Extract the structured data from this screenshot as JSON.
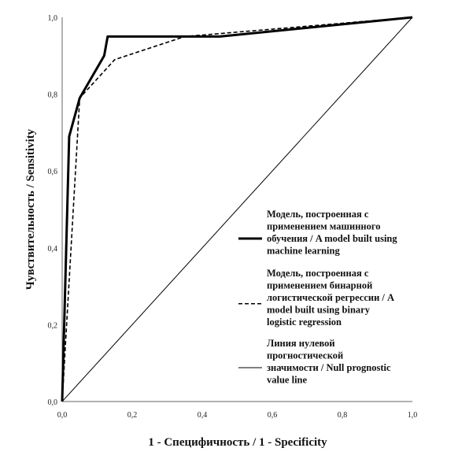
{
  "chart_data": {
    "type": "line",
    "xlabel": "1 - Специфичность / 1 - Specificity",
    "ylabel": "Чувствительность / Sensitivity",
    "xlim": [
      0,
      1
    ],
    "ylim": [
      0,
      1
    ],
    "x_ticks": [
      "0,0",
      "0,2",
      "0,4",
      "0,6",
      "0,8",
      "1,0"
    ],
    "y_ticks": [
      "0,0",
      "0,2",
      "0,4",
      "0,6",
      "0,8",
      "1,0"
    ],
    "grid": false,
    "legend_position": "right",
    "series": [
      {
        "name": "Модель, построенная с применением машинного обучения / A model built using machine learning",
        "style": "solid-thick",
        "color": "#000000",
        "x": [
          0.0,
          0.02,
          0.05,
          0.12,
          0.13,
          0.45,
          1.0
        ],
        "y": [
          0.0,
          0.69,
          0.79,
          0.9,
          0.95,
          0.95,
          1.0
        ]
      },
      {
        "name": "Модель, построенная с применением бинарной логистической регрессии / A model built using binary logistic regression",
        "style": "dashed",
        "color": "#000000",
        "x": [
          0.0,
          0.05,
          0.15,
          0.35,
          1.0
        ],
        "y": [
          0.0,
          0.79,
          0.89,
          0.95,
          1.0
        ]
      },
      {
        "name": "Линия нулевой прогностической значимости / Null prognostic value line",
        "style": "solid-thin",
        "color": "#000000",
        "x": [
          0.0,
          1.0
        ],
        "y": [
          0.0,
          1.0
        ]
      }
    ],
    "legend_lines": [
      [
        "Модель, построенная с",
        "применением машинного",
        "обучения / A model built using",
        "machine learning"
      ],
      [
        "Модель, построенная с",
        "применением бинарной",
        "логистической регрессии / A",
        "model built using binary",
        "logistic regression"
      ],
      [
        "Линия нулевой",
        "прогностической",
        "значимости / Null prognostic",
        "value line"
      ]
    ]
  }
}
